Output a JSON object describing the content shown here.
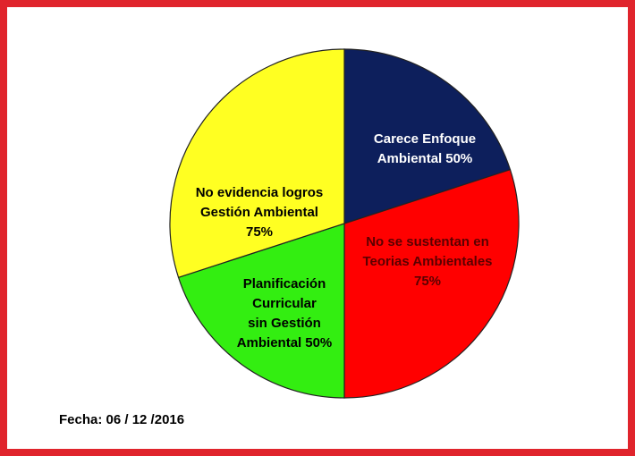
{
  "chart_data": {
    "type": "pie",
    "categories": [
      [
        "Carece Enfoque",
        "Ambiental"
      ],
      [
        "No se sustentan en",
        "Teorias Ambientales"
      ],
      [
        "Planificación",
        "Curricular",
        "sin Gestión",
        "Ambiental"
      ],
      [
        "No evidencia logros",
        "Gestión Ambiental"
      ]
    ],
    "values": [
      50,
      75,
      50,
      75
    ],
    "value_labels": [
      "50%",
      "75%",
      "50%",
      "75%"
    ],
    "colors": [
      "#0d1f5c",
      "#ff0000",
      "#33ee11",
      "#ffff22"
    ],
    "footnote": "Fecha: 06 / 12 /2016"
  }
}
